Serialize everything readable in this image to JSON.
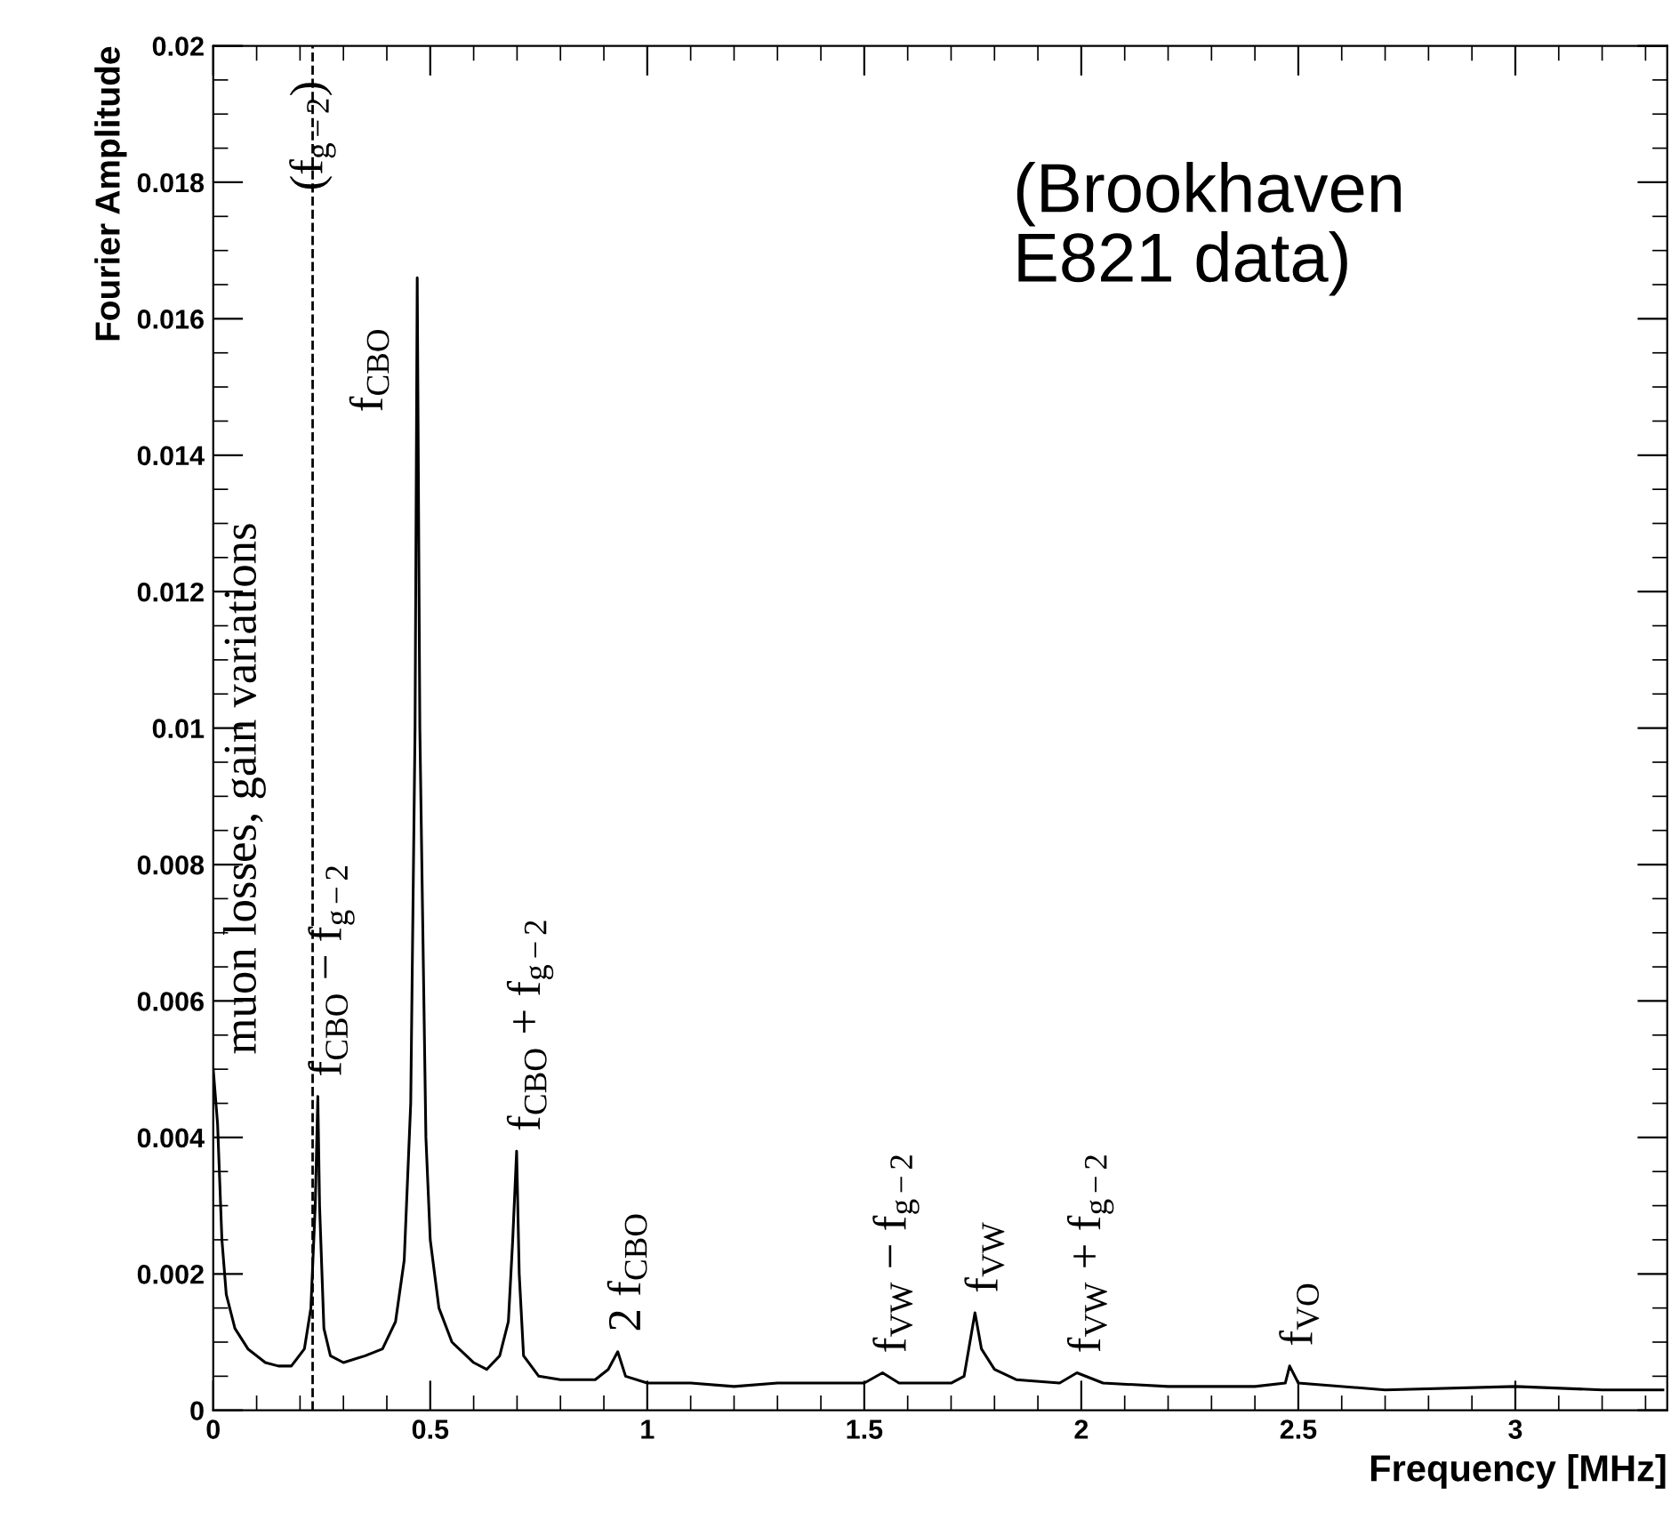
{
  "chart_data": {
    "type": "line",
    "xlabel": "Frequency [MHz]",
    "ylabel": "Fourier Amplitude",
    "x": [
      0,
      0.01,
      0.02,
      0.03,
      0.05,
      0.08,
      0.12,
      0.15,
      0.18,
      0.21,
      0.225,
      0.235,
      0.241,
      0.245,
      0.255,
      0.27,
      0.3,
      0.35,
      0.39,
      0.42,
      0.44,
      0.455,
      0.465,
      0.47,
      0.476,
      0.49,
      0.5,
      0.52,
      0.55,
      0.6,
      0.63,
      0.66,
      0.68,
      0.69,
      0.699,
      0.705,
      0.715,
      0.75,
      0.8,
      0.88,
      0.91,
      0.932,
      0.95,
      1.0,
      1.1,
      1.2,
      1.3,
      1.4,
      1.5,
      1.542,
      1.58,
      1.7,
      1.73,
      1.755,
      1.77,
      1.8,
      1.85,
      1.95,
      1.99,
      2.05,
      2.2,
      2.4,
      2.47,
      2.48,
      2.5,
      2.7,
      3.0,
      3.2,
      3.34
    ],
    "series": [
      {
        "color": "#000000",
        "values": [
          0.005,
          0.0042,
          0.0025,
          0.0017,
          0.0012,
          0.0009,
          0.0007,
          0.00065,
          0.00065,
          0.0009,
          0.0015,
          0.003,
          0.0046,
          0.003,
          0.0012,
          0.0008,
          0.0007,
          0.0008,
          0.0009,
          0.0013,
          0.0022,
          0.0045,
          0.01,
          0.0166,
          0.01,
          0.004,
          0.0025,
          0.0015,
          0.001,
          0.0007,
          0.0006,
          0.0008,
          0.0013,
          0.0025,
          0.0038,
          0.002,
          0.0008,
          0.0005,
          0.00045,
          0.00045,
          0.0006,
          0.00086,
          0.0005,
          0.0004,
          0.0004,
          0.00035,
          0.0004,
          0.0004,
          0.0004,
          0.00055,
          0.0004,
          0.0004,
          0.0005,
          0.00143,
          0.0009,
          0.0006,
          0.00045,
          0.0004,
          0.00055,
          0.0004,
          0.00035,
          0.00035,
          0.0004,
          0.00065,
          0.0004,
          0.0003,
          0.00035,
          0.0003,
          0.0003
        ]
      }
    ],
    "xlim": [
      0,
      3.35
    ],
    "ylim": [
      0,
      0.02
    ],
    "xticks": [
      0,
      0.5,
      1,
      1.5,
      2,
      2.5,
      3
    ],
    "yticks": [
      0,
      0.002,
      0.004,
      0.006,
      0.008,
      0.01,
      0.012,
      0.014,
      0.016,
      0.018,
      0.02
    ],
    "grid": false,
    "legend": false,
    "marker": "none",
    "line_style": "solid",
    "ref_lines": [
      {
        "axis": "x",
        "value": 0.229,
        "label": "(f$_{g−2}$)",
        "color": "#000000",
        "line_style": "dashed"
      }
    ],
    "annotations": [
      {
        "text": "muon losses, gain variations",
        "x": 0,
        "y": 0.005
      },
      {
        "text": "f$_{CBO}$ − f$_{g−2}$",
        "x": 0.241,
        "y": 0.0046
      },
      {
        "text": "f$_{CBO}$",
        "x": 0.47,
        "y": 0.0166
      },
      {
        "text": "f$_{CBO}$ + f$_{g−2}$",
        "x": 0.699,
        "y": 0.0038
      },
      {
        "text": "2 f$_{CBO}$",
        "x": 0.932,
        "y": 0.00086
      },
      {
        "text": "f$_{VW}$ − f$_{g−2}$",
        "x": 1.542,
        "y": 0.00055
      },
      {
        "text": "f$_{VW}$",
        "x": 1.755,
        "y": 0.00143
      },
      {
        "text": "f$_{VW}$ + f$_{g−2}$",
        "x": 1.99,
        "y": 0.00055
      },
      {
        "text": "f$_{VO}$",
        "x": 2.48,
        "y": 0.00065
      },
      "(Brookhaven\nE821 data)"
    ]
  }
}
